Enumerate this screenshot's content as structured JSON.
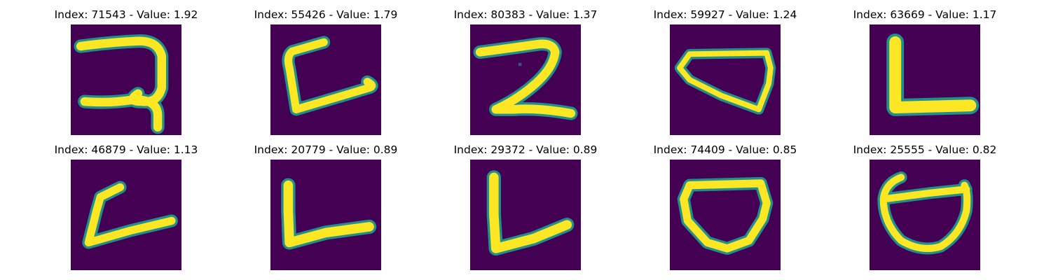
{
  "figure": {
    "panels": [
      {
        "title": "Index: 71543 - Value: 1.92",
        "glyph": "hook-two"
      },
      {
        "title": "Index: 55426 - Value: 1.79",
        "glyph": "c-with-tail"
      },
      {
        "title": "Index: 80383 - Value: 1.37",
        "glyph": "z-two"
      },
      {
        "title": "Index: 59927 - Value: 1.24",
        "glyph": "tilted-box"
      },
      {
        "title": "Index: 63669 - Value: 1.17",
        "glyph": "bold-L"
      },
      {
        "title": "Index: 46879 - Value: 1.13",
        "glyph": "small-L"
      },
      {
        "title": "Index: 20779 - Value: 0.89",
        "glyph": "L"
      },
      {
        "title": "Index: 29372 - Value: 0.89",
        "glyph": "L"
      },
      {
        "title": "Index: 74409 - Value: 0.85",
        "glyph": "cup"
      },
      {
        "title": "Index: 25555 - Value: 0.82",
        "glyph": "loop-with-bar"
      }
    ],
    "colors": {
      "background": "#440154",
      "edge": "#21908d",
      "stroke": "#fde725"
    }
  }
}
